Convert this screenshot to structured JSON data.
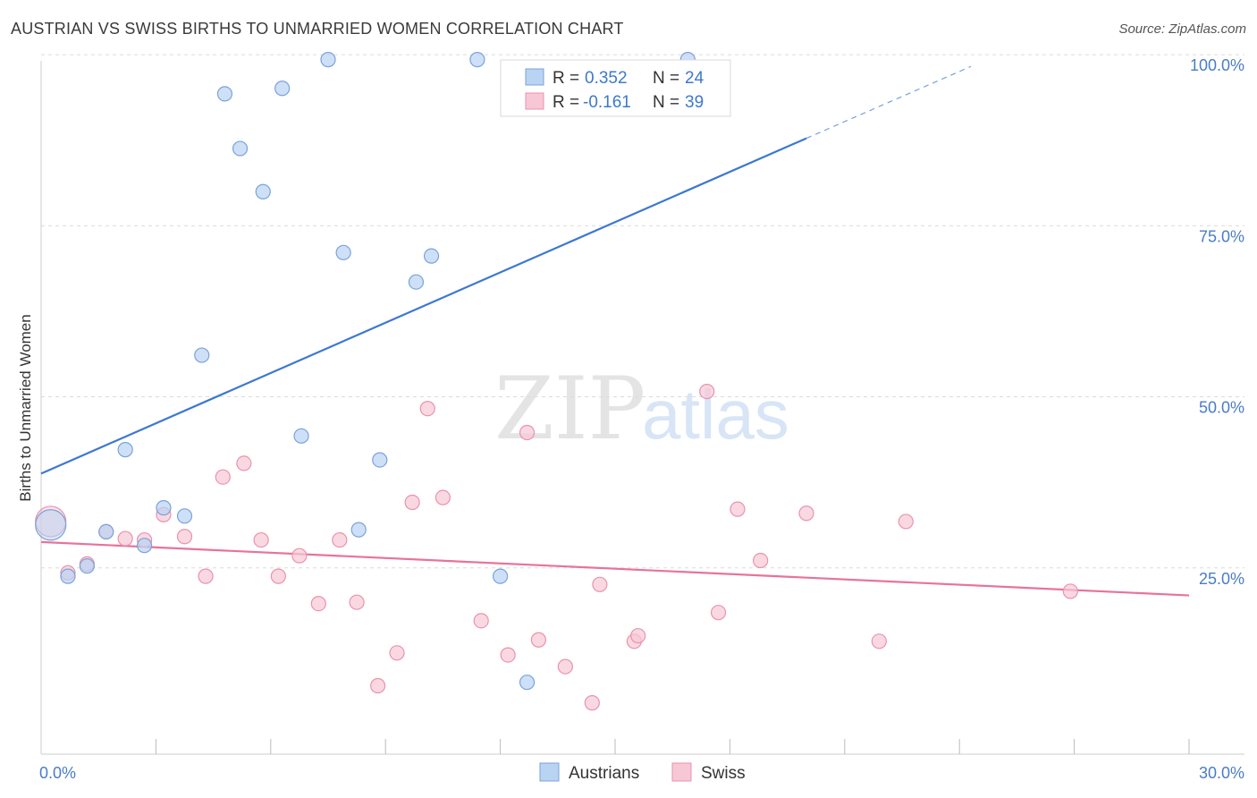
{
  "title": "AUSTRIAN VS SWISS BIRTHS TO UNMARRIED WOMEN CORRELATION CHART",
  "source": "Source: ZipAtlas.com",
  "watermark": {
    "zip": "ZIP",
    "atlas": "atlas"
  },
  "legend": {
    "r_label": "R =",
    "n_label": "N =",
    "rows": [
      {
        "name": "Austrians",
        "r": "0.352",
        "n": "24",
        "fill": "#b9d3f3",
        "stroke": "#7aa3d8"
      },
      {
        "name": "Swiss",
        "r": "-0.161",
        "n": "39",
        "fill": "#f8c7d6",
        "stroke": "#e893ad"
      }
    ]
  },
  "chart_data": {
    "type": "scatter",
    "title": "AUSTRIAN VS SWISS BIRTHS TO UNMARRIED WOMEN CORRELATION CHART",
    "xlabel": "",
    "ylabel": "Births to Unmarried Women",
    "xlim": [
      0,
      30
    ],
    "ylim": [
      0,
      102
    ],
    "x_tick_labels": [
      {
        "v": 0,
        "label": "0.0%"
      },
      {
        "v": 30,
        "label": "30.0%"
      }
    ],
    "y_tick_labels": [
      {
        "v": 25,
        "label": "25.0%"
      },
      {
        "v": 50,
        "label": "50.0%"
      },
      {
        "v": 75,
        "label": "75.0%"
      },
      {
        "v": 100,
        "label": "100.0%"
      }
    ],
    "series": [
      {
        "name": "Austrians",
        "color": "#3d78d0",
        "point_fill": "#b9d3f3",
        "point_stroke": "#7aa3d8",
        "trend": {
          "x0": 0,
          "y0": 41.0,
          "x1": 20.0,
          "y1": 90.0,
          "dash_to_x": 24.3,
          "dash_to_y": 100.5
        },
        "points": [
          {
            "x": 0.25,
            "y": 33.5,
            "big": true
          },
          {
            "x": 0.7,
            "y": 26.0
          },
          {
            "x": 1.2,
            "y": 27.5
          },
          {
            "x": 1.7,
            "y": 32.5
          },
          {
            "x": 2.2,
            "y": 44.5
          },
          {
            "x": 2.7,
            "y": 30.5
          },
          {
            "x": 3.2,
            "y": 36.0
          },
          {
            "x": 3.75,
            "y": 34.8
          },
          {
            "x": 4.2,
            "y": 58.3
          },
          {
            "x": 4.8,
            "y": 96.5
          },
          {
            "x": 5.2,
            "y": 88.5
          },
          {
            "x": 5.8,
            "y": 82.2
          },
          {
            "x": 6.3,
            "y": 97.3
          },
          {
            "x": 6.8,
            "y": 46.5
          },
          {
            "x": 7.5,
            "y": 101.5
          },
          {
            "x": 7.9,
            "y": 73.3
          },
          {
            "x": 8.3,
            "y": 32.8
          },
          {
            "x": 8.85,
            "y": 43.0
          },
          {
            "x": 9.8,
            "y": 69.0
          },
          {
            "x": 10.2,
            "y": 72.8
          },
          {
            "x": 11.4,
            "y": 101.5
          },
          {
            "x": 12.0,
            "y": 26.0
          },
          {
            "x": 12.7,
            "y": 10.5
          },
          {
            "x": 16.9,
            "y": 101.5
          }
        ]
      },
      {
        "name": "Swiss",
        "color": "#e8739a",
        "point_fill": "#f8c7d6",
        "point_stroke": "#e893ad",
        "trend": {
          "x0": 0,
          "y0": 31.0,
          "x1": 30.0,
          "y1": 23.2
        },
        "points": [
          {
            "x": 0.25,
            "y": 34.0,
            "big": true
          },
          {
            "x": 0.7,
            "y": 26.5
          },
          {
            "x": 1.2,
            "y": 27.8
          },
          {
            "x": 1.7,
            "y": 32.5
          },
          {
            "x": 2.2,
            "y": 31.5
          },
          {
            "x": 2.7,
            "y": 31.3
          },
          {
            "x": 3.2,
            "y": 35.0
          },
          {
            "x": 3.75,
            "y": 31.8
          },
          {
            "x": 4.3,
            "y": 26.0
          },
          {
            "x": 4.75,
            "y": 40.5
          },
          {
            "x": 5.3,
            "y": 42.5
          },
          {
            "x": 5.75,
            "y": 31.3
          },
          {
            "x": 6.2,
            "y": 26.0
          },
          {
            "x": 6.75,
            "y": 29.0
          },
          {
            "x": 7.25,
            "y": 22.0
          },
          {
            "x": 7.8,
            "y": 31.3
          },
          {
            "x": 8.25,
            "y": 22.2
          },
          {
            "x": 8.8,
            "y": 10.0
          },
          {
            "x": 9.3,
            "y": 14.8
          },
          {
            "x": 9.7,
            "y": 36.8
          },
          {
            "x": 10.1,
            "y": 50.5
          },
          {
            "x": 10.5,
            "y": 37.5
          },
          {
            "x": 11.5,
            "y": 19.5
          },
          {
            "x": 12.2,
            "y": 14.5
          },
          {
            "x": 12.7,
            "y": 47.0
          },
          {
            "x": 13.0,
            "y": 16.7
          },
          {
            "x": 13.7,
            "y": 12.8
          },
          {
            "x": 14.4,
            "y": 7.5
          },
          {
            "x": 14.6,
            "y": 24.8
          },
          {
            "x": 15.5,
            "y": 16.5
          },
          {
            "x": 15.6,
            "y": 17.3
          },
          {
            "x": 17.4,
            "y": 53.0
          },
          {
            "x": 17.7,
            "y": 20.7
          },
          {
            "x": 18.2,
            "y": 35.8
          },
          {
            "x": 18.8,
            "y": 28.3
          },
          {
            "x": 20.0,
            "y": 35.2
          },
          {
            "x": 21.9,
            "y": 16.5
          },
          {
            "x": 22.6,
            "y": 34.0
          },
          {
            "x": 26.9,
            "y": 23.8
          }
        ]
      }
    ]
  }
}
